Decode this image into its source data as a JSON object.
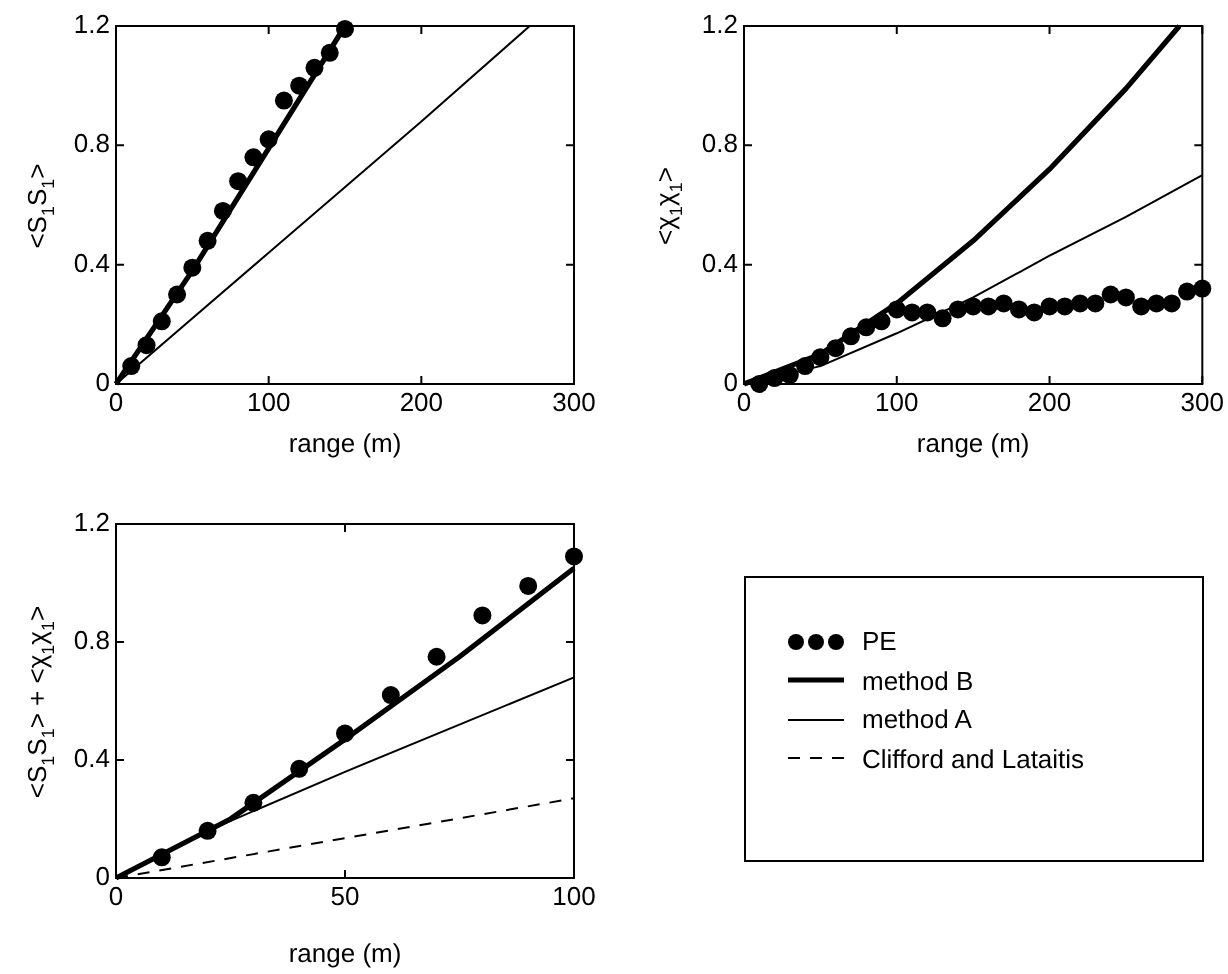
{
  "chart_data": [
    {
      "type": "line",
      "xlabel": "range (m)",
      "ylabel": "<S$_{1}$S$_{1}$>",
      "xlim": [
        0,
        300
      ],
      "xticks": [
        0,
        100,
        200,
        300
      ],
      "ylim": [
        0,
        1.2
      ],
      "yticks": [
        0,
        0.4,
        0.8,
        1.2
      ],
      "series": [
        {
          "type": "scatter",
          "color": "#000000",
          "marker": "circle",
          "x": [
            10,
            20,
            30,
            40,
            50,
            60,
            70,
            80,
            90,
            100,
            110,
            120,
            130,
            140,
            150
          ],
          "values": [
            0.06,
            0.13,
            0.21,
            0.3,
            0.39,
            0.48,
            0.58,
            0.68,
            0.76,
            0.82,
            0.95,
            1.0,
            1.06,
            1.11,
            1.19
          ]
        },
        {
          "type": "line",
          "color": "#000000",
          "x": [
            0,
            50,
            100,
            150
          ],
          "values": [
            0,
            0.38,
            0.79,
            1.2
          ]
        },
        {
          "type": "line",
          "color": "#000000",
          "x": [
            0,
            100,
            200,
            271
          ],
          "values": [
            0,
            0.44,
            0.88,
            1.2
          ]
        }
      ]
    },
    {
      "type": "line",
      "xlabel": "range (m)",
      "ylabel": "<χ$_{1}$χ$_{1}$>",
      "xlim": [
        0,
        300
      ],
      "xticks": [
        0,
        100,
        200,
        300
      ],
      "ylim": [
        0,
        1.2
      ],
      "yticks": [
        0,
        0.4,
        0.8,
        1.2
      ],
      "series": [
        {
          "type": "scatter",
          "color": "#000000",
          "marker": "circle",
          "x": [
            10,
            20,
            30,
            40,
            50,
            60,
            70,
            80,
            90,
            100,
            110,
            120,
            130,
            140,
            150,
            160,
            170,
            180,
            190,
            200,
            210,
            220,
            230,
            240,
            250,
            260,
            270,
            280,
            290,
            300
          ],
          "values": [
            0.0,
            0.02,
            0.03,
            0.06,
            0.09,
            0.12,
            0.16,
            0.19,
            0.21,
            0.25,
            0.24,
            0.24,
            0.22,
            0.25,
            0.26,
            0.26,
            0.27,
            0.25,
            0.24,
            0.26,
            0.26,
            0.27,
            0.27,
            0.3,
            0.29,
            0.26,
            0.27,
            0.27,
            0.31,
            0.32
          ]
        },
        {
          "type": "line",
          "color": "#000000",
          "x": [
            0,
            50,
            100,
            150,
            200,
            250,
            285
          ],
          "values": [
            0,
            0.1,
            0.27,
            0.48,
            0.72,
            0.99,
            1.2
          ]
        },
        {
          "type": "line",
          "color": "#000000",
          "x": [
            0,
            50,
            100,
            150,
            200,
            250,
            300
          ],
          "values": [
            0,
            0.06,
            0.17,
            0.29,
            0.43,
            0.56,
            0.7
          ]
        }
      ]
    },
    {
      "type": "line",
      "xlabel": "range (m)",
      "ylabel": "<S$_{1}$S$_{1}$> + <χ$_{1}$χ$_{1}$>",
      "xlim": [
        0,
        100
      ],
      "xticks": [
        0,
        50,
        100
      ],
      "ylim": [
        0,
        1.2
      ],
      "yticks": [
        0,
        0.4,
        0.8,
        1.2
      ],
      "legend": "right",
      "series": [
        {
          "type": "scatter",
          "name": "PE",
          "color": "#000000",
          "marker": "circle",
          "x": [
            10,
            20,
            30,
            40,
            50,
            60,
            70,
            80,
            90,
            100
          ],
          "values": [
            0.07,
            0.16,
            0.255,
            0.37,
            0.49,
            0.62,
            0.75,
            0.89,
            0.99,
            1.09
          ]
        },
        {
          "type": "line",
          "name": "method B",
          "color": "#000000",
          "x": [
            0,
            25,
            50,
            75,
            100
          ],
          "values": [
            0,
            0.2,
            0.47,
            0.75,
            1.05
          ]
        },
        {
          "type": "line",
          "name": "method A",
          "color": "#000000",
          "x": [
            0,
            20,
            50,
            100
          ],
          "values": [
            0,
            0.16,
            0.36,
            0.68
          ]
        },
        {
          "type": "line",
          "name": "Clifford and Lataitis",
          "color": "#000000",
          "line_style": "dashed",
          "x": [
            0,
            100
          ],
          "values": [
            0,
            0.27
          ]
        }
      ]
    }
  ]
}
